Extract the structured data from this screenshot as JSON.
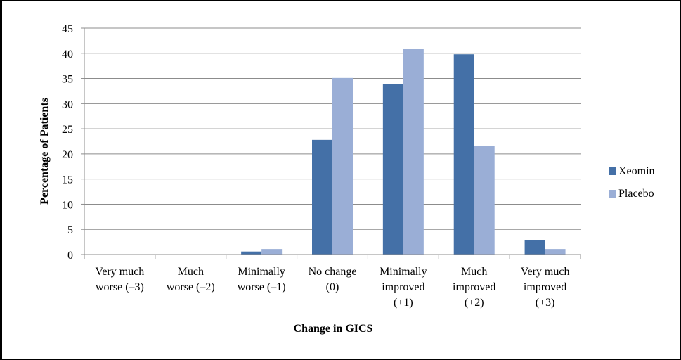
{
  "chart_data": {
    "type": "bar",
    "title": "",
    "xlabel": "Change in GICS",
    "ylabel": "Percentage of  Patients",
    "ylim": [
      0,
      45
    ],
    "yticks": [
      0,
      5,
      10,
      15,
      20,
      25,
      30,
      35,
      40,
      45
    ],
    "categories": [
      [
        "Very much",
        "worse (–3)"
      ],
      [
        "Much",
        "worse (–2)"
      ],
      [
        "Minimally",
        "worse (–1)"
      ],
      [
        "No change",
        "(0)"
      ],
      [
        "Minimally",
        "improved",
        "(+1)"
      ],
      [
        "Much",
        "improved",
        "(+2)"
      ],
      [
        "Very much",
        "improved",
        "(+3)"
      ]
    ],
    "series": [
      {
        "name": "Xeomin",
        "color": "#4470A7",
        "values": [
          0,
          0,
          0.6,
          22.8,
          33.9,
          39.8,
          2.9
        ]
      },
      {
        "name": "Placebo",
        "color": "#9AAED6",
        "values": [
          0,
          0,
          1.1,
          35.1,
          40.9,
          21.6,
          1.1
        ]
      }
    ],
    "grid": true,
    "legend_position": "right"
  }
}
